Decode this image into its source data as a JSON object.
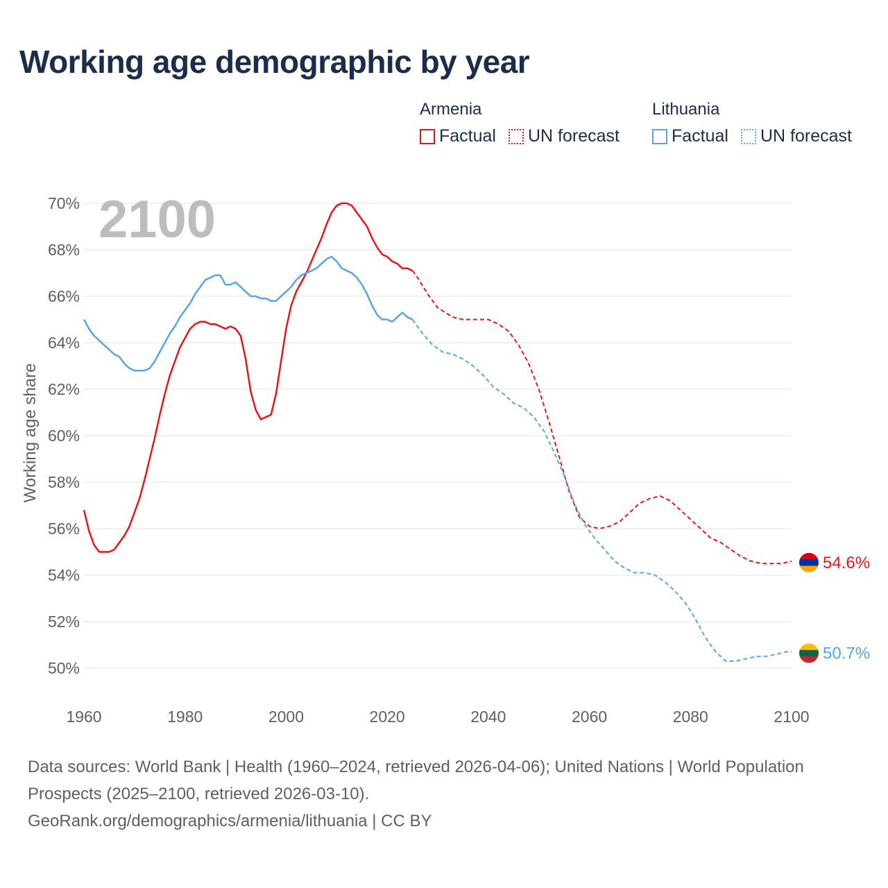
{
  "title": "Working age demographic by year",
  "legend": {
    "groups": [
      {
        "country": "Armenia",
        "factual_label": "Factual",
        "forecast_label": "UN forecast",
        "color": "#e8141b"
      },
      {
        "country": "Lithuania",
        "factual_label": "Factual",
        "forecast_label": "UN forecast",
        "color": "#5aa3e4"
      }
    ]
  },
  "footer": {
    "sources": "Data sources: World Bank | Health (1960–2024, retrieved 2026-04-06); United Nations | World Population Prospects (2025–2100, retrieved 2026-03-10).",
    "link": "GeoRank.org/demographics/armenia/lithuania | CC BY"
  },
  "chart_data": {
    "type": "line",
    "title": "Working age demographic by year",
    "year_label": "2100",
    "xlabel": "",
    "ylabel": "Working age share",
    "xlim": [
      1960,
      2100
    ],
    "ylim": [
      50,
      70
    ],
    "x_ticks": [
      "1960",
      "1980",
      "2000",
      "2020",
      "2040",
      "2060",
      "2080",
      "2100"
    ],
    "y_ticks": [
      "70%",
      "68%",
      "66%",
      "64%",
      "62%",
      "60%",
      "58%",
      "56%",
      "54%",
      "52%",
      "50%"
    ],
    "grid": true,
    "series": [
      {
        "name": "Armenia",
        "color": "#e8141b",
        "end_label": "54.6%",
        "factual": [
          [
            1960,
            56.8
          ],
          [
            1961,
            55.9
          ],
          [
            1962,
            55.3
          ],
          [
            1963,
            55.0
          ],
          [
            1964,
            55.0
          ],
          [
            1965,
            55.0
          ],
          [
            1966,
            55.1
          ],
          [
            1967,
            55.4
          ],
          [
            1968,
            55.7
          ],
          [
            1969,
            56.1
          ],
          [
            1970,
            56.7
          ],
          [
            1971,
            57.3
          ],
          [
            1972,
            58.1
          ],
          [
            1973,
            59.0
          ],
          [
            1974,
            59.9
          ],
          [
            1975,
            60.9
          ],
          [
            1976,
            61.8
          ],
          [
            1977,
            62.6
          ],
          [
            1978,
            63.2
          ],
          [
            1979,
            63.8
          ],
          [
            1980,
            64.2
          ],
          [
            1981,
            64.6
          ],
          [
            1982,
            64.8
          ],
          [
            1983,
            64.9
          ],
          [
            1984,
            64.9
          ],
          [
            1985,
            64.8
          ],
          [
            1986,
            64.8
          ],
          [
            1987,
            64.7
          ],
          [
            1988,
            64.6
          ],
          [
            1989,
            64.7
          ],
          [
            1990,
            64.6
          ],
          [
            1991,
            64.3
          ],
          [
            1992,
            63.3
          ],
          [
            1993,
            61.9
          ],
          [
            1994,
            61.1
          ],
          [
            1995,
            60.7
          ],
          [
            1996,
            60.8
          ],
          [
            1997,
            60.9
          ],
          [
            1998,
            61.8
          ],
          [
            1999,
            63.2
          ],
          [
            2000,
            64.6
          ],
          [
            2001,
            65.6
          ],
          [
            2002,
            66.2
          ],
          [
            2003,
            66.6
          ],
          [
            2004,
            67.0
          ],
          [
            2005,
            67.5
          ],
          [
            2006,
            68.0
          ],
          [
            2007,
            68.5
          ],
          [
            2008,
            69.1
          ],
          [
            2009,
            69.6
          ],
          [
            2010,
            69.9
          ],
          [
            2011,
            70.0
          ],
          [
            2012,
            70.0
          ],
          [
            2013,
            69.9
          ],
          [
            2014,
            69.6
          ],
          [
            2015,
            69.3
          ],
          [
            2016,
            69.0
          ],
          [
            2017,
            68.5
          ],
          [
            2018,
            68.1
          ],
          [
            2019,
            67.8
          ],
          [
            2020,
            67.7
          ],
          [
            2021,
            67.5
          ],
          [
            2022,
            67.4
          ],
          [
            2023,
            67.2
          ],
          [
            2024,
            67.2
          ],
          [
            2025,
            67.1
          ]
        ],
        "forecast": [
          [
            2025,
            67.1
          ],
          [
            2026,
            66.8
          ],
          [
            2028,
            66.1
          ],
          [
            2030,
            65.5
          ],
          [
            2033,
            65.1
          ],
          [
            2035,
            65.0
          ],
          [
            2040,
            65.0
          ],
          [
            2042,
            64.8
          ],
          [
            2044,
            64.5
          ],
          [
            2046,
            63.9
          ],
          [
            2048,
            63.1
          ],
          [
            2050,
            62.0
          ],
          [
            2052,
            60.6
          ],
          [
            2054,
            59.1
          ],
          [
            2056,
            57.6
          ],
          [
            2058,
            56.5
          ],
          [
            2060,
            56.1
          ],
          [
            2062,
            56.0
          ],
          [
            2064,
            56.1
          ],
          [
            2066,
            56.3
          ],
          [
            2068,
            56.7
          ],
          [
            2070,
            57.1
          ],
          [
            2072,
            57.3
          ],
          [
            2074,
            57.4
          ],
          [
            2076,
            57.2
          ],
          [
            2078,
            56.8
          ],
          [
            2080,
            56.4
          ],
          [
            2082,
            56.0
          ],
          [
            2084,
            55.6
          ],
          [
            2086,
            55.4
          ],
          [
            2088,
            55.1
          ],
          [
            2090,
            54.8
          ],
          [
            2092,
            54.6
          ],
          [
            2094,
            54.5
          ],
          [
            2096,
            54.5
          ],
          [
            2098,
            54.5
          ],
          [
            2100,
            54.6
          ]
        ]
      },
      {
        "name": "Lithuania",
        "color": "#5aa3e4",
        "end_label": "50.7%",
        "factual": [
          [
            1960,
            65.0
          ],
          [
            1961,
            64.6
          ],
          [
            1962,
            64.3
          ],
          [
            1963,
            64.1
          ],
          [
            1964,
            63.9
          ],
          [
            1965,
            63.7
          ],
          [
            1966,
            63.5
          ],
          [
            1967,
            63.4
          ],
          [
            1968,
            63.1
          ],
          [
            1969,
            62.9
          ],
          [
            1970,
            62.8
          ],
          [
            1971,
            62.8
          ],
          [
            1972,
            62.8
          ],
          [
            1973,
            62.9
          ],
          [
            1974,
            63.2
          ],
          [
            1975,
            63.6
          ],
          [
            1976,
            64.0
          ],
          [
            1977,
            64.4
          ],
          [
            1978,
            64.7
          ],
          [
            1979,
            65.1
          ],
          [
            1980,
            65.4
          ],
          [
            1981,
            65.7
          ],
          [
            1982,
            66.1
          ],
          [
            1983,
            66.4
          ],
          [
            1984,
            66.7
          ],
          [
            1985,
            66.8
          ],
          [
            1986,
            66.9
          ],
          [
            1987,
            66.9
          ],
          [
            1988,
            66.5
          ],
          [
            1989,
            66.5
          ],
          [
            1990,
            66.6
          ],
          [
            1991,
            66.4
          ],
          [
            1992,
            66.2
          ],
          [
            1993,
            66.0
          ],
          [
            1994,
            66.0
          ],
          [
            1995,
            65.9
          ],
          [
            1996,
            65.9
          ],
          [
            1997,
            65.8
          ],
          [
            1998,
            65.8
          ],
          [
            1999,
            66.0
          ],
          [
            2000,
            66.2
          ],
          [
            2001,
            66.4
          ],
          [
            2002,
            66.7
          ],
          [
            2003,
            66.9
          ],
          [
            2004,
            67.0
          ],
          [
            2005,
            67.1
          ],
          [
            2006,
            67.2
          ],
          [
            2007,
            67.4
          ],
          [
            2008,
            67.6
          ],
          [
            2009,
            67.7
          ],
          [
            2010,
            67.5
          ],
          [
            2011,
            67.2
          ],
          [
            2012,
            67.1
          ],
          [
            2013,
            67.0
          ],
          [
            2014,
            66.8
          ],
          [
            2015,
            66.5
          ],
          [
            2016,
            66.1
          ],
          [
            2017,
            65.6
          ],
          [
            2018,
            65.2
          ],
          [
            2019,
            65.0
          ],
          [
            2020,
            65.0
          ],
          [
            2021,
            64.9
          ],
          [
            2022,
            65.1
          ],
          [
            2023,
            65.3
          ],
          [
            2024,
            65.1
          ],
          [
            2025,
            65.0
          ]
        ],
        "forecast": [
          [
            2025,
            65.0
          ],
          [
            2027,
            64.4
          ],
          [
            2029,
            63.9
          ],
          [
            2031,
            63.6
          ],
          [
            2033,
            63.5
          ],
          [
            2035,
            63.3
          ],
          [
            2037,
            63.0
          ],
          [
            2039,
            62.6
          ],
          [
            2041,
            62.1
          ],
          [
            2043,
            61.8
          ],
          [
            2045,
            61.4
          ],
          [
            2047,
            61.2
          ],
          [
            2049,
            60.8
          ],
          [
            2051,
            60.2
          ],
          [
            2053,
            59.3
          ],
          [
            2055,
            58.3
          ],
          [
            2057,
            57.1
          ],
          [
            2059,
            56.2
          ],
          [
            2061,
            55.6
          ],
          [
            2063,
            55.1
          ],
          [
            2065,
            54.6
          ],
          [
            2067,
            54.3
          ],
          [
            2069,
            54.1
          ],
          [
            2071,
            54.1
          ],
          [
            2073,
            54.0
          ],
          [
            2075,
            53.7
          ],
          [
            2077,
            53.3
          ],
          [
            2079,
            52.8
          ],
          [
            2081,
            52.1
          ],
          [
            2083,
            51.3
          ],
          [
            2085,
            50.7
          ],
          [
            2087,
            50.3
          ],
          [
            2089,
            50.3
          ],
          [
            2091,
            50.4
          ],
          [
            2093,
            50.5
          ],
          [
            2095,
            50.5
          ],
          [
            2097,
            50.6
          ],
          [
            2099,
            50.7
          ],
          [
            2100,
            50.7
          ]
        ]
      }
    ]
  }
}
